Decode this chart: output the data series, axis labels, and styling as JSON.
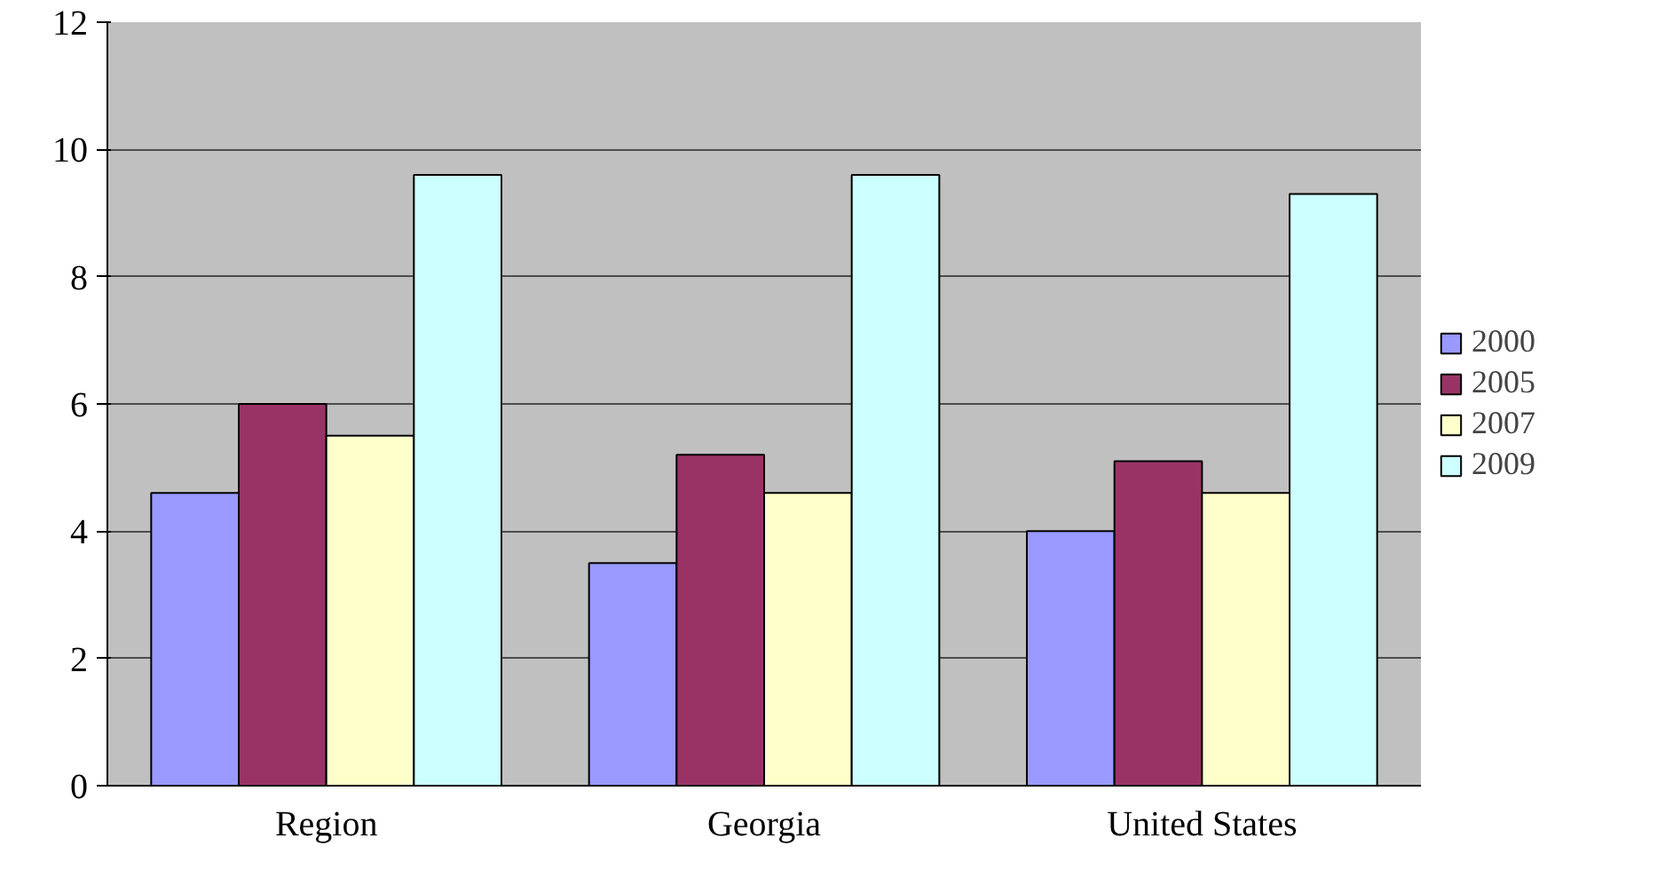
{
  "chart_data": {
    "type": "bar",
    "categories": [
      "Region",
      "Georgia",
      "United States"
    ],
    "series": [
      {
        "name": "2000",
        "color": "#9999ff",
        "values": [
          4.6,
          3.5,
          4.0
        ]
      },
      {
        "name": "2005",
        "color": "#993366",
        "values": [
          6.0,
          5.2,
          5.1
        ]
      },
      {
        "name": "2007",
        "color": "#ffffcc",
        "values": [
          5.5,
          4.6,
          4.6
        ]
      },
      {
        "name": "2009",
        "color": "#ccffff",
        "values": [
          9.6,
          9.6,
          9.3
        ]
      }
    ],
    "ylim": [
      0,
      12
    ],
    "yticks": [
      0,
      2,
      4,
      6,
      8,
      10,
      12
    ],
    "grid": "y",
    "legend": "right"
  }
}
